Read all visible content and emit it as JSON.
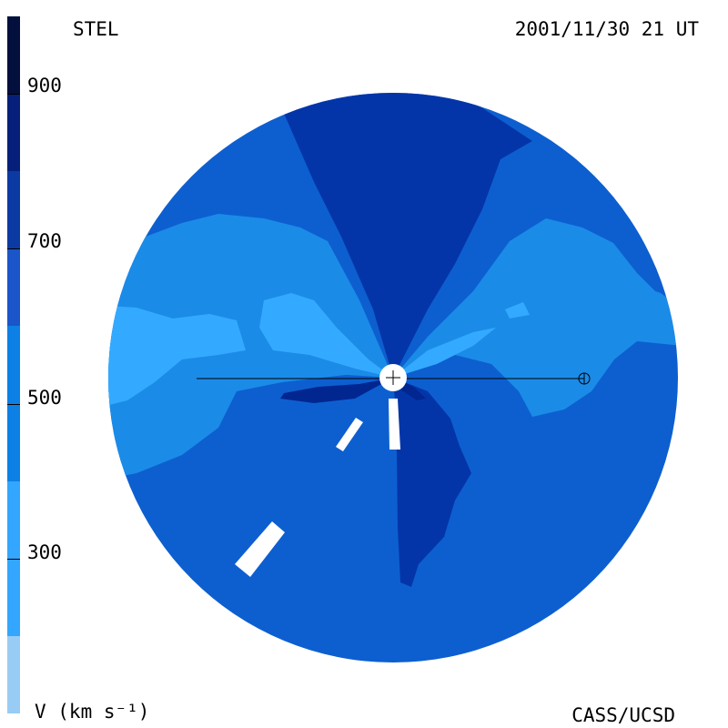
{
  "header": {
    "observatory": "STEL",
    "timestamp": "2001/11/30 21 UT"
  },
  "footer": {
    "unit_label": "V (km s⁻¹)",
    "credit": "CASS/UCSD"
  },
  "colorbar": {
    "ticks": [
      "900",
      "700",
      "500",
      "300"
    ],
    "tick_values": [
      900,
      700,
      500,
      300
    ],
    "range": [
      100,
      1000
    ],
    "bands": [
      {
        "from": 100,
        "to": 200,
        "color": "#99ccf5"
      },
      {
        "from": 200,
        "to": 400,
        "color": "#33a6ff"
      },
      {
        "from": 400,
        "to": 600,
        "color": "#0d80e6"
      },
      {
        "from": 600,
        "to": 700,
        "color": "#1a55c9"
      },
      {
        "from": 700,
        "to": 800,
        "color": "#0b3aa3"
      },
      {
        "from": 800,
        "to": 900,
        "color": "#061f7a"
      },
      {
        "from": 900,
        "to": 1000,
        "color": "#03103d"
      }
    ]
  },
  "colors": {
    "v_lowest": "#33aaff",
    "v_low": "#1b8be8",
    "v_mid": "#0d5fd0",
    "v_high": "#0435a8",
    "v_highest": "#022690",
    "sun": "#ffffff",
    "line": "#000000"
  }
}
